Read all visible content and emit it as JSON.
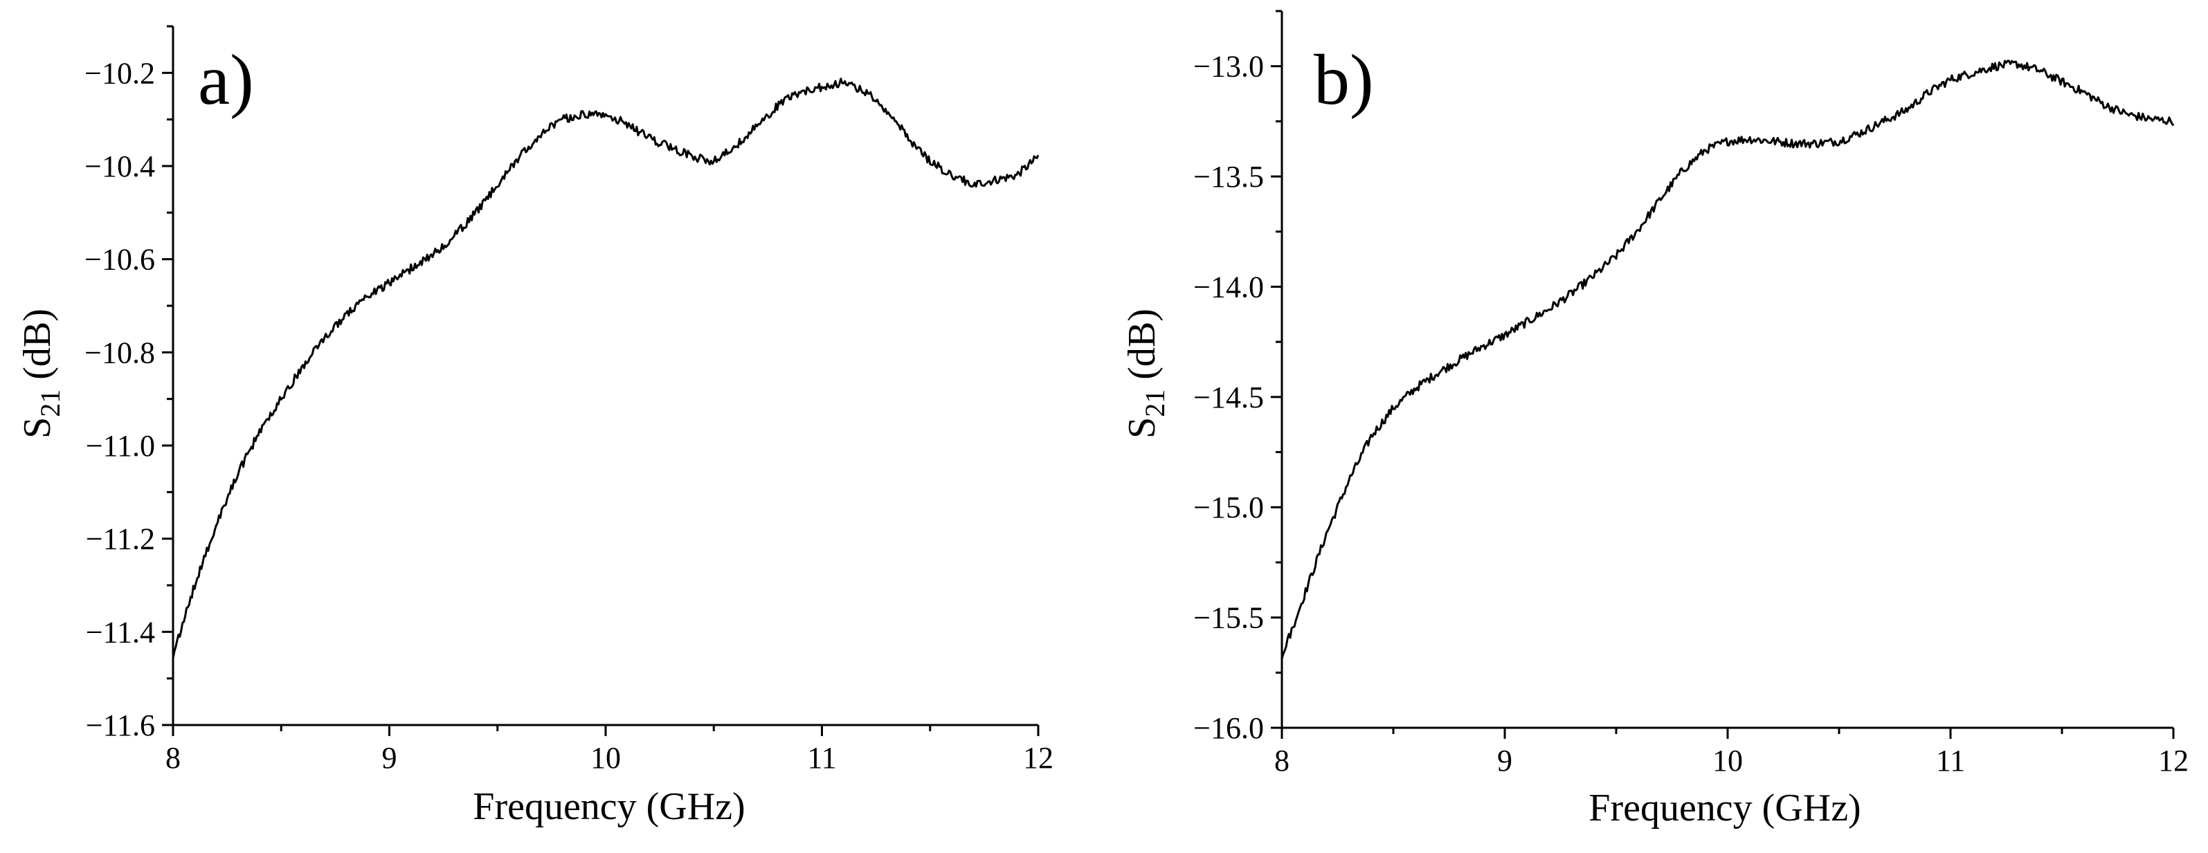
{
  "figure": {
    "panels": [
      "a)",
      "b)"
    ]
  },
  "chart_data": [
    {
      "type": "line",
      "panel_label": "a)",
      "xlabel": "Frequency (GHz)",
      "ylabel_main": "S",
      "ylabel_sub": "21",
      "ylabel_unit": " (dB)",
      "xlim": [
        8,
        12
      ],
      "ylim": [
        -11.6,
        -10.1
      ],
      "xticks": [
        8,
        9,
        10,
        11,
        12
      ],
      "xtick_labels": [
        "8",
        "9",
        "10",
        "11",
        "12"
      ],
      "yticks": [
        -11.6,
        -11.4,
        -11.2,
        -11.0,
        -10.8,
        -10.6,
        -10.4,
        -10.2
      ],
      "ytick_labels": [
        "−11.6",
        "−11.4",
        "−11.2",
        "−11.0",
        "−10.8",
        "−10.6",
        "−10.4",
        "−10.2"
      ],
      "grid": false,
      "color": "#000000",
      "series": [
        {
          "name": "S21",
          "x": [
            8.0,
            8.1,
            8.2,
            8.3,
            8.4,
            8.5,
            8.6,
            8.7,
            8.8,
            8.9,
            9.0,
            9.1,
            9.2,
            9.3,
            9.4,
            9.5,
            9.6,
            9.7,
            9.8,
            9.9,
            10.0,
            10.1,
            10.2,
            10.3,
            10.4,
            10.5,
            10.6,
            10.7,
            10.8,
            10.9,
            11.0,
            11.1,
            11.2,
            11.3,
            11.4,
            11.5,
            11.6,
            11.7,
            11.8,
            11.9,
            12.0
          ],
          "y": [
            -11.45,
            -11.3,
            -11.17,
            -11.06,
            -10.97,
            -10.9,
            -10.83,
            -10.77,
            -10.72,
            -10.68,
            -10.65,
            -10.62,
            -10.59,
            -10.55,
            -10.5,
            -10.44,
            -10.38,
            -10.33,
            -10.3,
            -10.29,
            -10.29,
            -10.31,
            -10.34,
            -10.36,
            -10.38,
            -10.39,
            -10.36,
            -10.31,
            -10.27,
            -10.24,
            -10.23,
            -10.22,
            -10.24,
            -10.28,
            -10.34,
            -10.39,
            -10.42,
            -10.44,
            -10.43,
            -10.42,
            -10.38
          ]
        }
      ]
    },
    {
      "type": "line",
      "panel_label": "b)",
      "xlabel": "Frequency (GHz)",
      "ylabel_main": "S",
      "ylabel_sub": "21",
      "ylabel_unit": " (dB)",
      "xlim": [
        8,
        12
      ],
      "ylim": [
        -16.0,
        -12.75
      ],
      "xticks": [
        8,
        9,
        10,
        11,
        12
      ],
      "xtick_labels": [
        "8",
        "9",
        "10",
        "11",
        "12"
      ],
      "yticks": [
        -16.0,
        -15.5,
        -15.0,
        -14.5,
        -14.0,
        -13.5,
        -13.0
      ],
      "ytick_labels": [
        "−16.0",
        "−15.5",
        "−15.0",
        "−14.5",
        "−14.0",
        "−13.5",
        "−13.0"
      ],
      "grid": false,
      "color": "#000000",
      "series": [
        {
          "name": "S21",
          "x": [
            8.0,
            8.1,
            8.2,
            8.3,
            8.4,
            8.5,
            8.6,
            8.7,
            8.8,
            8.9,
            9.0,
            9.1,
            9.2,
            9.3,
            9.4,
            9.5,
            9.6,
            9.7,
            9.8,
            9.9,
            10.0,
            10.1,
            10.2,
            10.3,
            10.4,
            10.5,
            10.6,
            10.7,
            10.8,
            10.9,
            11.0,
            11.1,
            11.2,
            11.3,
            11.4,
            11.5,
            11.6,
            11.7,
            11.8,
            11.9,
            12.0
          ],
          "y": [
            -15.68,
            -15.4,
            -15.12,
            -14.88,
            -14.68,
            -14.55,
            -14.46,
            -14.39,
            -14.33,
            -14.27,
            -14.22,
            -14.16,
            -14.1,
            -14.03,
            -13.95,
            -13.86,
            -13.74,
            -13.6,
            -13.47,
            -13.38,
            -13.34,
            -13.33,
            -13.34,
            -13.35,
            -13.35,
            -13.34,
            -13.3,
            -13.25,
            -13.2,
            -13.12,
            -13.06,
            -13.03,
            -13.0,
            -12.99,
            -13.02,
            -13.07,
            -13.12,
            -13.18,
            -13.22,
            -13.24,
            -13.25
          ]
        }
      ]
    }
  ]
}
